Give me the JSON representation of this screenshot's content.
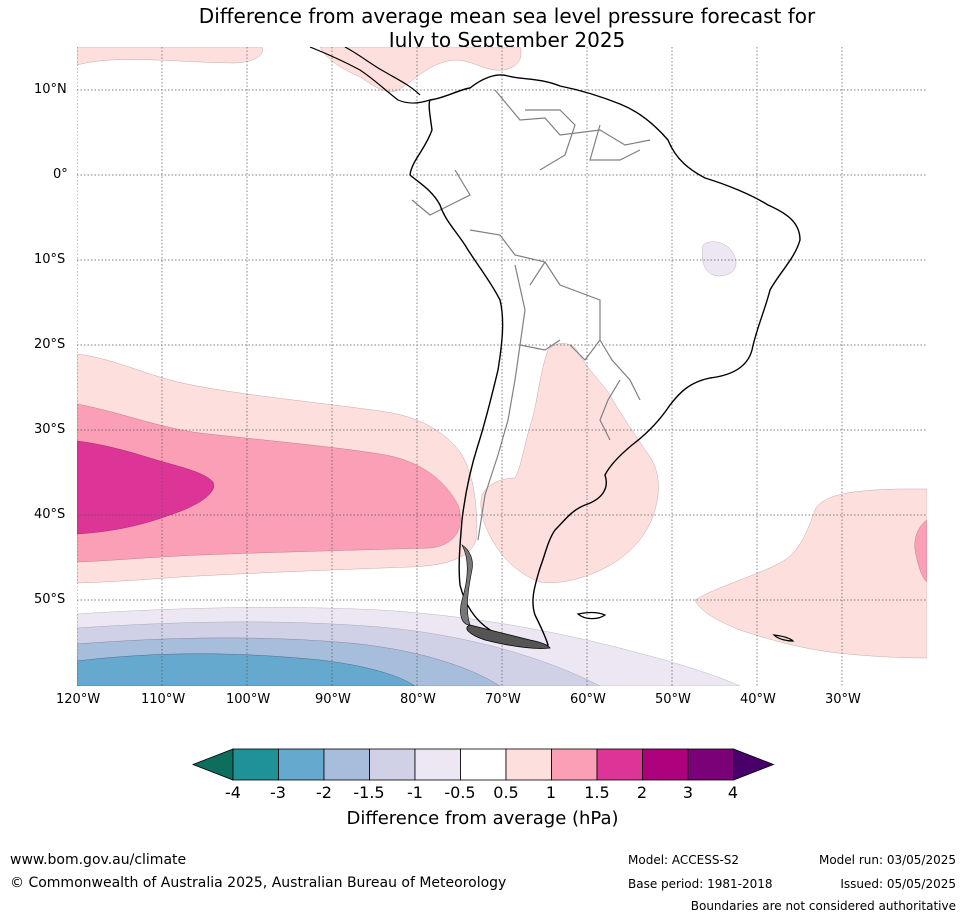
{
  "title_line1": "Difference from average mean sea level pressure forecast for",
  "title_line2": "July to September 2025",
  "lat_labels": [
    "10°N",
    "0°",
    "10°S",
    "20°S",
    "30°S",
    "40°S",
    "50°S"
  ],
  "lon_labels": [
    "120°W",
    "110°W",
    "100°W",
    "90°W",
    "80°W",
    "70°W",
    "60°W",
    "50°W",
    "40°W",
    "30°W"
  ],
  "colorbar": {
    "ticks": [
      "-4",
      "-3",
      "-2",
      "-1.5",
      "-1",
      "-0.5",
      "0.5",
      "1",
      "1.5",
      "2",
      "3",
      "4"
    ],
    "colors": [
      "#0d6e5e",
      "#1f9298",
      "#66a9cf",
      "#a6bddb",
      "#d0d1e6",
      "#ece7f2",
      "#ffffff",
      "#fde0dd",
      "#fa9fb5",
      "#dd3497",
      "#ae017e",
      "#7a0177",
      "#49006a"
    ],
    "label": "Difference from average (hPa)"
  },
  "footer": {
    "url": "www.bom.gov.au/climate",
    "copyright": "© Commonwealth of Australia 2025, Australian Bureau of Meteorology",
    "model": "Model: ACCESS-S2",
    "base_period": "Base period: 1981-2018",
    "model_run": "Model run: 03/05/2025",
    "issued": "Issued: 05/05/2025",
    "boundaries": "Boundaries are not considered authoritative"
  }
}
